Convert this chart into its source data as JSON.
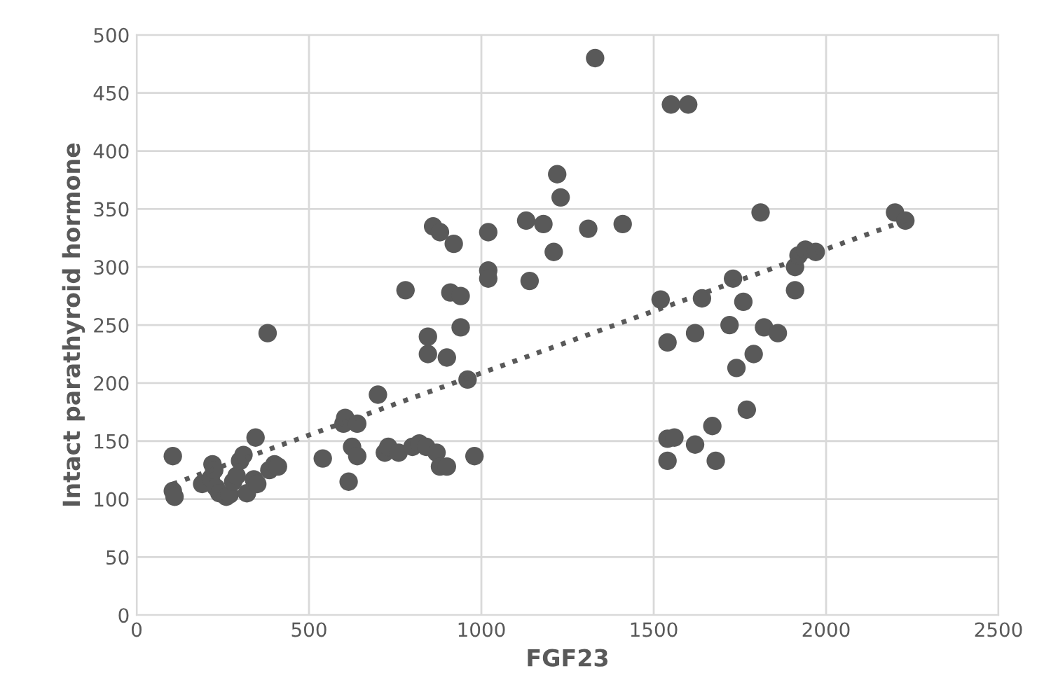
{
  "chart_data": {
    "type": "scatter",
    "xlabel": "FGF23",
    "ylabel": "Intact parathyroid hormone",
    "xlim": [
      0,
      2500
    ],
    "xticks": [
      0,
      500,
      1000,
      1500,
      2000,
      2500
    ],
    "ylim": [
      0,
      500
    ],
    "yticks": [
      0,
      50,
      100,
      150,
      200,
      250,
      300,
      350,
      400,
      450,
      500
    ],
    "grid": true,
    "series": [
      {
        "color": "#595959",
        "marker": "circle",
        "x": [
          105,
          105,
          110,
          190,
          215,
          220,
          225,
          230,
          240,
          260,
          270,
          280,
          290,
          300,
          310,
          320,
          340,
          345,
          350,
          380,
          385,
          400,
          410,
          540,
          600,
          605,
          615,
          625,
          640,
          640,
          700,
          720,
          730,
          760,
          780,
          800,
          820,
          840,
          845,
          845,
          860,
          870,
          880,
          880,
          900,
          900,
          910,
          920,
          940,
          940,
          960,
          980,
          1020,
          1020,
          1020,
          1130,
          1140,
          1180,
          1210,
          1220,
          1230,
          1310,
          1330,
          1410,
          1520,
          1540,
          1540,
          1540,
          1550,
          1560,
          1600,
          1620,
          1620,
          1640,
          1670,
          1680,
          1720,
          1730,
          1740,
          1760,
          1770,
          1790,
          1810,
          1820,
          1860,
          1910,
          1910,
          1920,
          1940,
          1970,
          2200,
          2230
        ],
        "values": [
          137,
          107,
          102,
          113,
          118,
          130,
          125,
          110,
          105,
          102,
          104,
          115,
          120,
          133,
          138,
          105,
          117,
          153,
          113,
          243,
          125,
          130,
          128,
          135,
          165,
          170,
          115,
          145,
          165,
          137,
          190,
          140,
          145,
          140,
          280,
          145,
          148,
          145,
          240,
          225,
          335,
          140,
          128,
          330,
          128,
          222,
          278,
          320,
          248,
          275,
          203,
          137,
          297,
          290,
          330,
          340,
          288,
          337,
          313,
          380,
          360,
          333,
          480,
          337,
          272,
          235,
          133,
          152,
          440,
          153,
          440,
          147,
          243,
          273,
          163,
          133,
          250,
          290,
          213,
          270,
          177,
          225,
          347,
          248,
          243,
          280,
          300,
          310,
          315,
          313,
          347,
          340
        ]
      },
      {
        "type": "line",
        "color": "#595959",
        "line_style": "dotted",
        "marker": "none",
        "x": [
          105,
          2230
        ],
        "values": [
          113,
          340
        ]
      }
    ]
  }
}
